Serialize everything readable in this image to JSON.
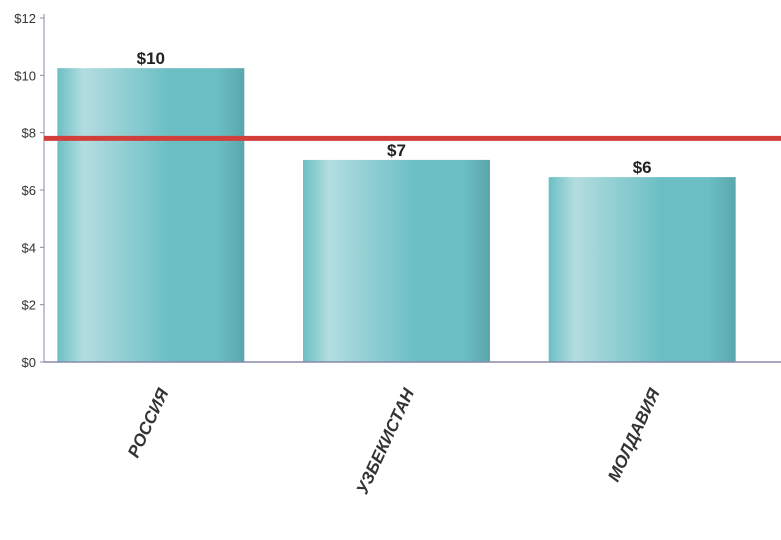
{
  "chart_data": {
    "type": "bar",
    "categories": [
      "РОССИЯ",
      "УЗБЕКИСТАН",
      "МОЛДАВИЯ"
    ],
    "values": [
      10.25,
      7.05,
      6.45
    ],
    "data_labels": [
      "$10",
      "$7",
      "$6"
    ],
    "ylim": [
      0,
      12
    ],
    "yticks": [
      0,
      2,
      4,
      6,
      8,
      10,
      12
    ],
    "ytick_labels": [
      "$0",
      "$2",
      "$4",
      "$6",
      "$8",
      "$10",
      "$12"
    ],
    "reference_line": 7.8,
    "xlabel": "",
    "ylabel": "",
    "title": "",
    "grid": false,
    "legend": "none",
    "colors": {
      "bar_light": "#b3dde0",
      "bar_mid": "#6bbfc4",
      "bar_dark": "#5aa7ad",
      "reference_line": "#d23f3a",
      "axis": "#8888aa"
    }
  }
}
